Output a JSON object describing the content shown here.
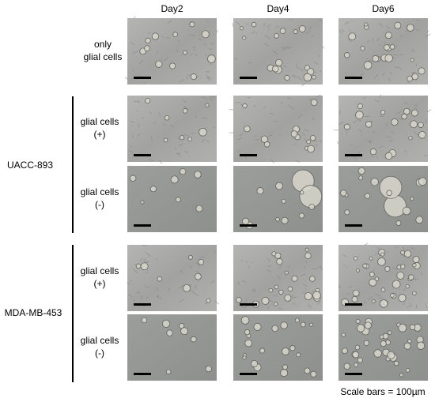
{
  "columns": [
    "Day2",
    "Day4",
    "Day6"
  ],
  "rows": [
    {
      "label": [
        "only",
        "glial cells"
      ]
    },
    {
      "label": [
        "glial cells",
        "(+)"
      ]
    },
    {
      "label": [
        "glial cells",
        "(-)"
      ]
    },
    {
      "label": [
        "glial cells",
        "(+)"
      ]
    },
    {
      "label": [
        "glial cells",
        "(-)"
      ]
    }
  ],
  "groups": [
    {
      "label": "UACC-893"
    },
    {
      "label": "MDA-MB-453"
    }
  ],
  "note": "Scale bars = 100µm"
}
